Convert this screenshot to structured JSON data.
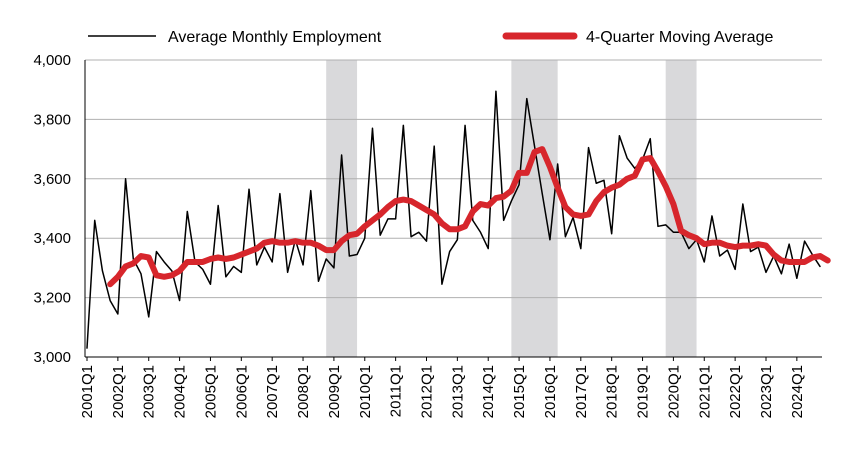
{
  "chart_data": {
    "type": "line",
    "title": "",
    "xlabel": "",
    "ylabel": "",
    "ylim": [
      3000,
      4000
    ],
    "y_ticks": [
      "3,000",
      "3,200",
      "3,400",
      "3,600",
      "3,800",
      "4,000"
    ],
    "y_tick_values": [
      3000,
      3200,
      3400,
      3600,
      3800,
      4000
    ],
    "x_tick_labels": [
      "2001Q1",
      "2002Q1",
      "2003Q1",
      "2004Q1",
      "2005Q1",
      "2006Q1",
      "2007Q1",
      "2008Q1",
      "2009Q1",
      "2010Q1",
      "2011Q1",
      "2012Q1",
      "2013Q1",
      "2014Q1",
      "2015Q1",
      "2016Q1",
      "2017Q1",
      "2018Q1",
      "2019Q1",
      "2020Q1",
      "2021Q1",
      "2022Q1",
      "2023Q1",
      "2024Q1"
    ],
    "grid": "horizontal",
    "legend_position": "top",
    "recessions": [
      {
        "start": "2008Q4",
        "end": "2009Q4"
      },
      {
        "start": "2014Q4",
        "end": "2016Q2"
      },
      {
        "start": "2019Q4",
        "end": "2020Q4"
      }
    ],
    "series": [
      {
        "name": "Average Monthly Employment",
        "color": "#000000",
        "style": "thin",
        "start_quarter": "2001Q1",
        "values": [
          3030,
          3460,
          3290,
          3190,
          3145,
          3600,
          3330,
          3280,
          3135,
          3355,
          3320,
          3290,
          3190,
          3490,
          3320,
          3295,
          3245,
          3510,
          3270,
          3305,
          3285,
          3565,
          3310,
          3370,
          3320,
          3550,
          3285,
          3395,
          3310,
          3560,
          3255,
          3330,
          3300,
          3680,
          3340,
          3345,
          3400,
          3770,
          3410,
          3465,
          3465,
          3780,
          3405,
          3420,
          3390,
          3710,
          3245,
          3355,
          3395,
          3780,
          3460,
          3420,
          3365,
          3895,
          3460,
          3525,
          3580,
          3870,
          3710,
          3550,
          3395,
          3650,
          3405,
          3470,
          3365,
          3705,
          3585,
          3595,
          3415,
          3745,
          3670,
          3635,
          3665,
          3735,
          3440,
          3445,
          3420,
          3420,
          3365,
          3395,
          3320,
          3475,
          3340,
          3360,
          3295,
          3515,
          3355,
          3370,
          3285,
          3340,
          3280,
          3380,
          3265,
          3390,
          3345,
          3305
        ]
      },
      {
        "name": "4-Quarter Moving Average",
        "color": "#d7262c",
        "style": "thick",
        "start_quarter": "2001Q4",
        "values": [
          3245,
          3270,
          3305,
          3315,
          3340,
          3335,
          3275,
          3270,
          3275,
          3290,
          3320,
          3320,
          3320,
          3330,
          3335,
          3330,
          3335,
          3345,
          3355,
          3365,
          3385,
          3390,
          3385,
          3385,
          3390,
          3385,
          3385,
          3375,
          3360,
          3360,
          3390,
          3410,
          3415,
          3440,
          3460,
          3480,
          3505,
          3525,
          3530,
          3525,
          3510,
          3495,
          3480,
          3450,
          3430,
          3430,
          3440,
          3490,
          3515,
          3510,
          3535,
          3540,
          3560,
          3620,
          3620,
          3690,
          3700,
          3640,
          3570,
          3505,
          3480,
          3475,
          3480,
          3525,
          3555,
          3570,
          3580,
          3600,
          3610,
          3665,
          3670,
          3625,
          3575,
          3515,
          3425,
          3410,
          3400,
          3380,
          3385,
          3385,
          3375,
          3370,
          3375,
          3375,
          3380,
          3375,
          3345,
          3325,
          3320,
          3320,
          3320,
          3335,
          3340,
          3325
        ]
      }
    ]
  }
}
